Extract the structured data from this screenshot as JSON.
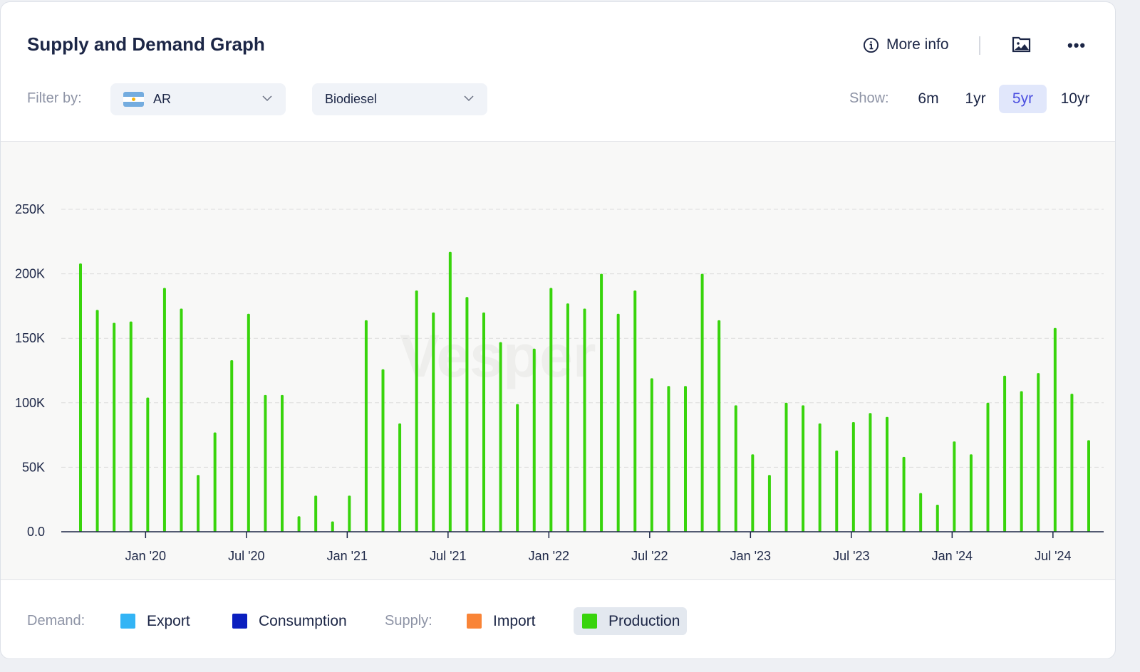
{
  "header": {
    "title": "Supply and Demand Graph",
    "more_info": "More info",
    "icons": [
      "info-icon",
      "image-export-icon",
      "more-dots-icon"
    ]
  },
  "filters": {
    "label": "Filter by:",
    "country": "AR",
    "product": "Biodiesel"
  },
  "range": {
    "label": "Show:",
    "options": [
      "6m",
      "1yr",
      "5yr",
      "10yr"
    ],
    "active": "5yr"
  },
  "legend": {
    "demand_label": "Demand:",
    "supply_label": "Supply:",
    "items": [
      {
        "label": "Export",
        "color": "#33b4f5"
      },
      {
        "label": "Consumption",
        "color": "#0b1fbf"
      },
      {
        "label": "Import",
        "color": "#f98437"
      },
      {
        "label": "Production",
        "color": "#38d40c",
        "active": true
      }
    ]
  },
  "chart_data": {
    "type": "bar",
    "title": "Supply and Demand Graph",
    "series": [
      {
        "name": "Production",
        "color": "#38d40c",
        "values": [
          208,
          172,
          162,
          163,
          104,
          189,
          173,
          44,
          77,
          133,
          169,
          106,
          106,
          12,
          28,
          8,
          28,
          164,
          126,
          84,
          187,
          170,
          217,
          182,
          170,
          147,
          99,
          142,
          189,
          177,
          173,
          200,
          169,
          187,
          119,
          113,
          113,
          200,
          164,
          98,
          60,
          44,
          100,
          98,
          84,
          63,
          85,
          92,
          89,
          58,
          30,
          21,
          70,
          60,
          100,
          121,
          109,
          123,
          158,
          107,
          71
        ]
      }
    ],
    "value_unit": "K",
    "x_start": "Sep 2019",
    "x_end": "Sep 2024",
    "x_interval": "monthly",
    "xticks": [
      {
        "index": 4,
        "label": "Jan '20"
      },
      {
        "index": 10,
        "label": "Jul '20"
      },
      {
        "index": 16,
        "label": "Jan '21"
      },
      {
        "index": 22,
        "label": "Jul '21"
      },
      {
        "index": 28,
        "label": "Jan '22"
      },
      {
        "index": 34,
        "label": "Jul '22"
      },
      {
        "index": 40,
        "label": "Jan '23"
      },
      {
        "index": 46,
        "label": "Jul '23"
      },
      {
        "index": 52,
        "label": "Jan '24"
      },
      {
        "index": 58,
        "label": "Jul '24"
      }
    ],
    "yticks": [
      {
        "value": 0,
        "label": "0.0"
      },
      {
        "value": 50,
        "label": "50K"
      },
      {
        "value": 100,
        "label": "100K"
      },
      {
        "value": 150,
        "label": "150K"
      },
      {
        "value": 200,
        "label": "200K"
      },
      {
        "value": 250,
        "label": "250K"
      }
    ],
    "ylim": [
      0,
      250
    ],
    "grid": true
  }
}
